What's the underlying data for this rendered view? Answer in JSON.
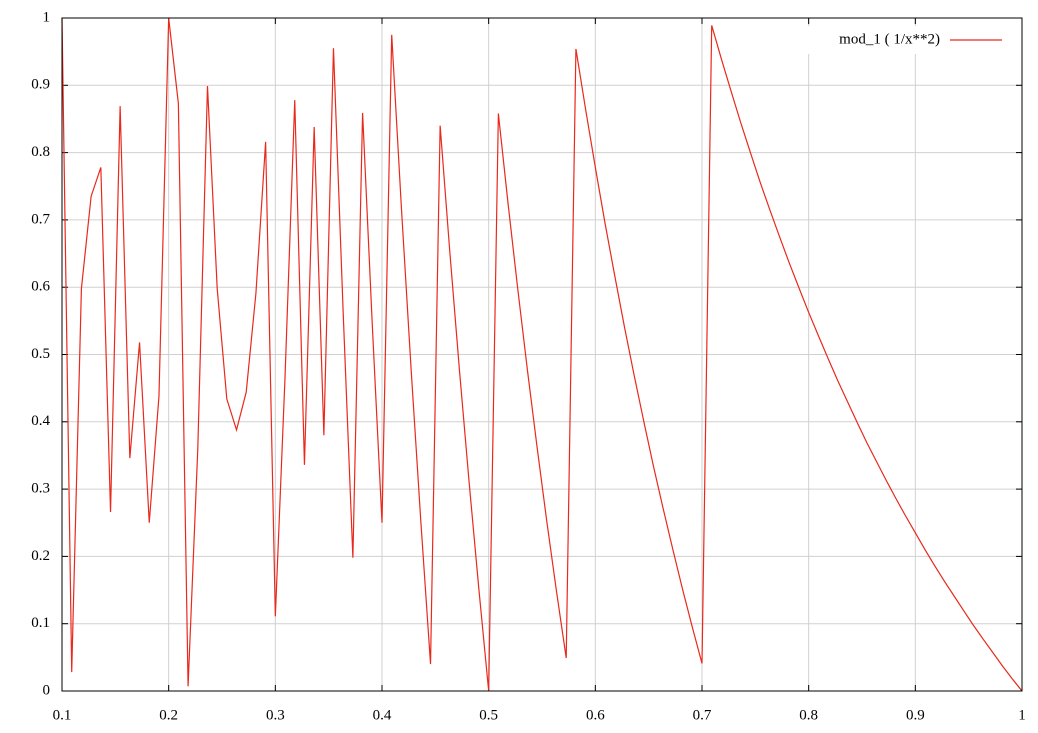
{
  "chart_data": {
    "type": "line",
    "x": [
      0.1,
      0.1091,
      0.1182,
      0.1273,
      0.1364,
      0.1455,
      0.1545,
      0.1636,
      0.1727,
      0.1818,
      0.1909,
      0.2,
      0.2091,
      0.2182,
      0.2273,
      0.2364,
      0.2455,
      0.2545,
      0.2636,
      0.2727,
      0.2818,
      0.2909,
      0.3,
      0.3091,
      0.3182,
      0.3273,
      0.3364,
      0.3455,
      0.3545,
      0.3636,
      0.3727,
      0.3818,
      0.3909,
      0.4,
      0.4091,
      0.4182,
      0.4273,
      0.4364,
      0.4455,
      0.4545,
      0.4636,
      0.4727,
      0.4818,
      0.4909,
      0.5,
      0.5091,
      0.5182,
      0.5273,
      0.5364,
      0.5455,
      0.5545,
      0.5636,
      0.5727,
      0.5818,
      0.5909,
      0.6,
      0.6091,
      0.6182,
      0.6273,
      0.6364,
      0.6455,
      0.6545,
      0.6636,
      0.6727,
      0.6818,
      0.6909,
      0.7,
      0.7091,
      0.7182,
      0.7273,
      0.7364,
      0.7455,
      0.7545,
      0.7636,
      0.7727,
      0.7818,
      0.7909,
      0.8,
      0.8091,
      0.8182,
      0.8273,
      0.8364,
      0.8455,
      0.8545,
      0.8636,
      0.8727,
      0.8818,
      0.8909,
      0.9,
      0.9091,
      0.9182,
      0.9273,
      0.9364,
      0.9455,
      0.9545,
      0.9636,
      0.9727,
      0.9818,
      0.9909,
      1
    ],
    "series": [
      {
        "name": "mod_1 ( 1/x**2)",
        "color": "#e8291c",
        "values": [
          1,
          0.028,
          0.598,
          0.735,
          0.778,
          0.266,
          0.869,
          0.346,
          0.518,
          0.25,
          0.438,
          1,
          0.873,
          0.007,
          0.36,
          0.899,
          0.598,
          0.434,
          0.388,
          0.444,
          0.591,
          0.816,
          0.111,
          0.467,
          0.878,
          0.336,
          0.838,
          0.38,
          0.955,
          0.5625,
          0.198,
          0.859,
          0.544,
          0.25,
          0.975,
          0.718,
          0.478,
          0.252,
          0.04,
          0.84,
          0.652,
          0.475,
          0.308,
          0.15,
          0,
          0.858,
          0.724,
          0.597,
          0.476,
          0.361,
          0.252,
          0.148,
          0.049,
          0.954,
          0.864,
          0.778,
          0.695,
          0.617,
          0.541,
          0.469,
          0.4,
          0.334,
          0.271,
          0.21,
          0.151,
          0.095,
          0.041,
          0.989,
          0.939,
          0.891,
          0.844,
          0.7995,
          0.756,
          0.715,
          0.675,
          0.636,
          0.599,
          0.5625,
          0.528,
          0.494,
          0.461,
          0.43,
          0.399,
          0.369,
          0.341,
          0.313,
          0.286,
          0.26,
          0.235,
          0.21,
          0.186,
          0.163,
          0.141,
          0.119,
          0.0975,
          0.077,
          0.057,
          0.037,
          0.018,
          0
        ]
      }
    ],
    "xlim": [
      0.1,
      1
    ],
    "ylim": [
      0,
      1
    ],
    "xticks": [
      0.1,
      0.2,
      0.3,
      0.4,
      0.5,
      0.6,
      0.7,
      0.8,
      0.9,
      1
    ],
    "yticks": [
      0,
      0.1,
      0.2,
      0.3,
      0.4,
      0.5,
      0.6,
      0.7,
      0.8,
      0.9,
      1
    ],
    "grid": true,
    "legend": "top-right"
  }
}
